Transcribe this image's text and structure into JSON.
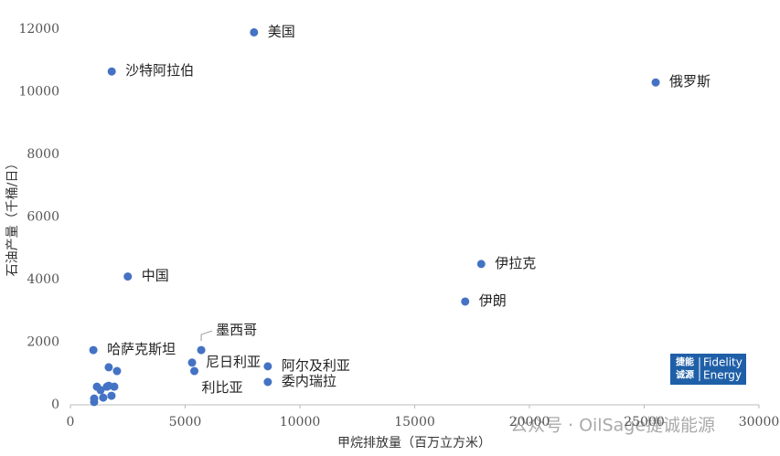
{
  "chart_data": {
    "type": "scatter",
    "xlabel": "甲烷排放量（百万立方米）",
    "ylabel": "石油产量（千桶/日）",
    "x": [
      8000,
      1800,
      25500,
      2500,
      17900,
      17200,
      5700,
      1000,
      5300,
      5400,
      8600,
      8600,
      1670,
      2030,
      1155,
      1315,
      1590,
      1670,
      1910,
      1430,
      1790,
      1035,
      1035
    ],
    "values": [
      11900,
      10650,
      10300,
      4100,
      4500,
      3300,
      1750,
      1750,
      1350,
      1080,
      1230,
      730,
      1200,
      1080,
      580,
      470,
      580,
      610,
      580,
      230,
      290,
      200,
      90
    ],
    "labels": [
      "美国",
      "沙特阿拉伯",
      "俄罗斯",
      "中国",
      "伊拉克",
      "伊朗",
      "墨西哥",
      "哈萨克斯坦",
      "尼日利亚",
      "利比亚",
      "阿尔及利亚",
      "委内瑞拉",
      null,
      null,
      null,
      null,
      null,
      null,
      null,
      null,
      null,
      null,
      null
    ],
    "color": "#4472c4",
    "xlim": [
      0,
      30000
    ],
    "xticks": [
      0,
      5000,
      10000,
      15000,
      20000,
      25000,
      30000
    ],
    "ylim": [
      0,
      12000
    ],
    "yticks": [
      0,
      2000,
      4000,
      6000,
      8000,
      10000,
      12000
    ],
    "grid": false
  },
  "watermark": "公众号 · OilSage捷诚能源",
  "logo": {
    "cn_top": "捷能",
    "cn_bottom": "诚源",
    "en_top": "Fidelity",
    "en_bottom": "Energy"
  }
}
